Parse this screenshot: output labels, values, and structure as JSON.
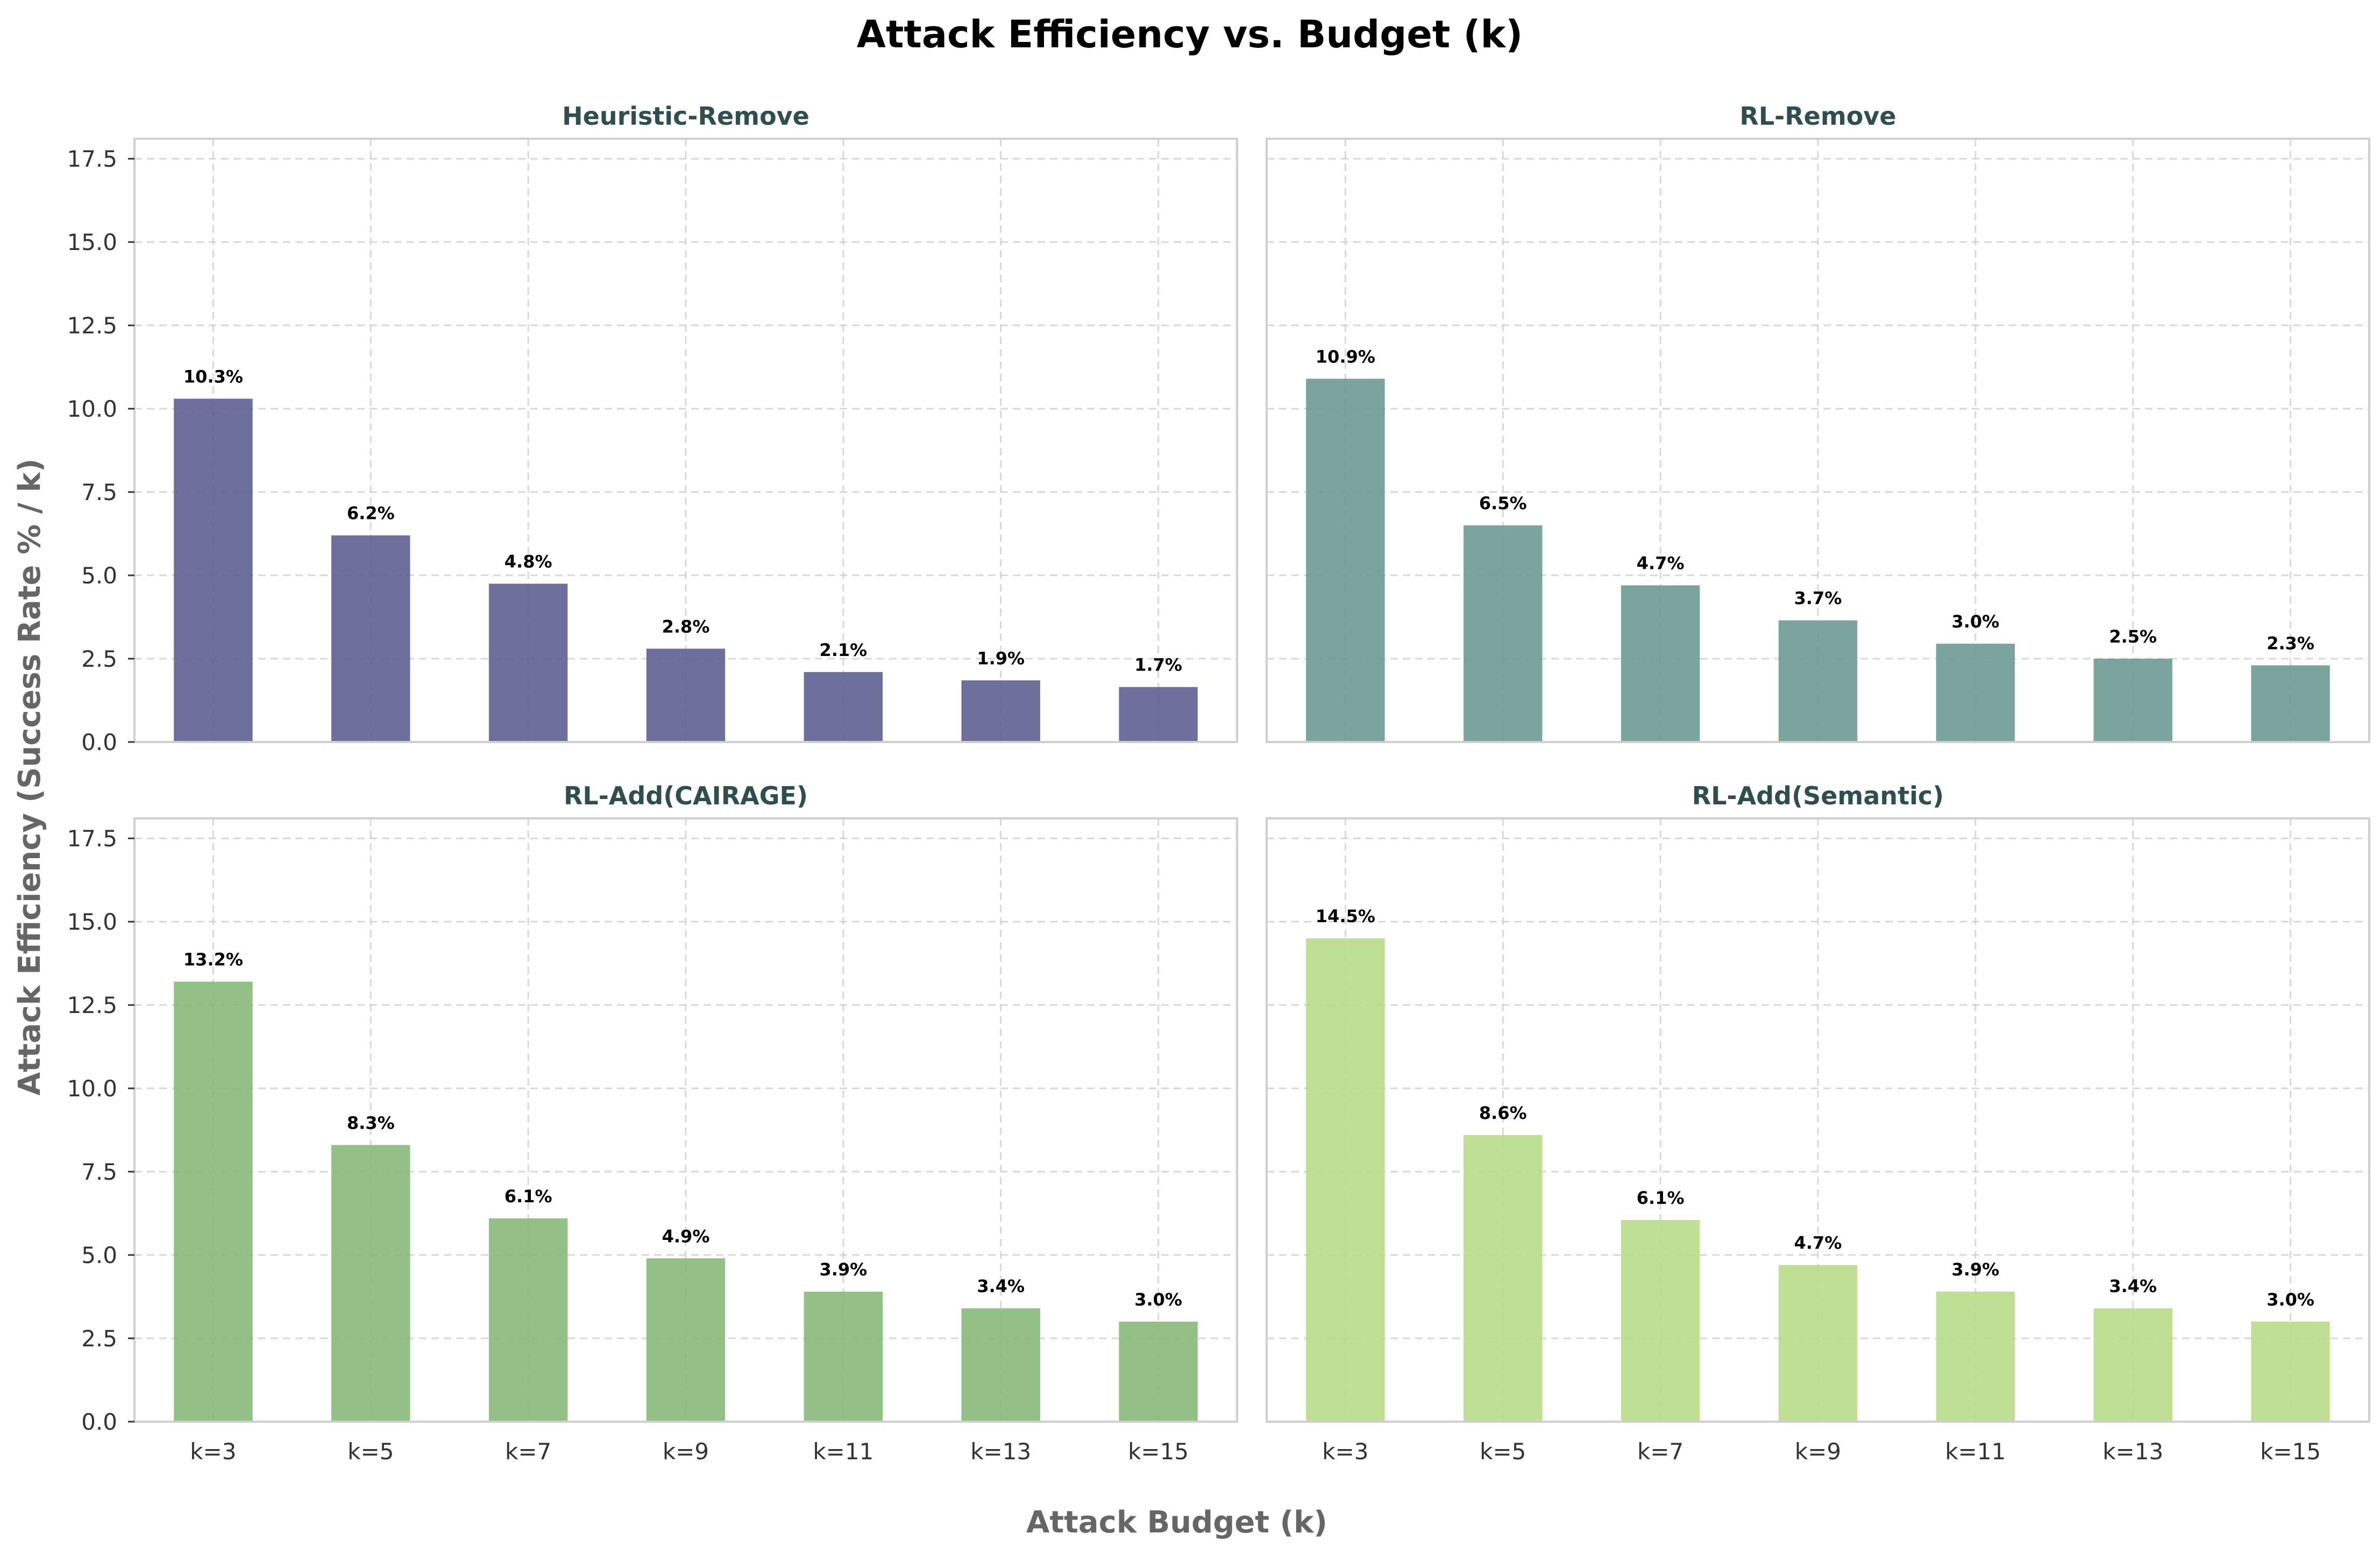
{
  "title": "Attack Efficiency vs. Budget (k)",
  "xlabel": "Attack Budget (k)",
  "ylabel": "Attack Efficiency (Success Rate % / k)",
  "colors": {
    "title_text": "#2f4f4f",
    "axis_label": "#666666"
  },
  "chart_data": [
    {
      "type": "bar",
      "title": "Heuristic-Remove",
      "categories": [
        "k=3",
        "k=5",
        "k=7",
        "k=9",
        "k=11",
        "k=13",
        "k=15"
      ],
      "values": [
        10.3,
        6.2,
        4.75,
        2.8,
        2.1,
        1.85,
        1.65
      ],
      "labels": [
        "10.3%",
        "6.2%",
        "4.8%",
        "2.8%",
        "2.1%",
        "1.9%",
        "1.7%"
      ],
      "color": "#5e6190",
      "ylim": [
        0,
        18.1
      ],
      "yticks": [
        "0.0",
        "2.5",
        "5.0",
        "7.5",
        "10.0",
        "12.5",
        "15.0",
        "17.5"
      ],
      "grid": true
    },
    {
      "type": "bar",
      "title": "RL-Remove",
      "categories": [
        "k=3",
        "k=5",
        "k=7",
        "k=9",
        "k=11",
        "k=13",
        "k=15"
      ],
      "values": [
        10.9,
        6.5,
        4.7,
        3.65,
        2.95,
        2.5,
        2.3
      ],
      "labels": [
        "10.9%",
        "6.5%",
        "4.7%",
        "3.7%",
        "3.0%",
        "2.5%",
        "2.3%"
      ],
      "color": "#6e9a93",
      "ylim": [
        0,
        18.1
      ],
      "yticks": [
        "0.0",
        "2.5",
        "5.0",
        "7.5",
        "10.0",
        "12.5",
        "15.0",
        "17.5"
      ],
      "grid": true
    },
    {
      "type": "bar",
      "title": "RL-Add(CAIRAGE)",
      "categories": [
        "k=3",
        "k=5",
        "k=7",
        "k=9",
        "k=11",
        "k=13",
        "k=15"
      ],
      "values": [
        13.2,
        8.3,
        6.1,
        4.9,
        3.9,
        3.4,
        3.0
      ],
      "labels": [
        "13.2%",
        "8.3%",
        "6.1%",
        "4.9%",
        "3.9%",
        "3.4%",
        "3.0%"
      ],
      "color": "#87b979",
      "ylim": [
        0,
        18.1
      ],
      "yticks": [
        "0.0",
        "2.5",
        "5.0",
        "7.5",
        "10.0",
        "12.5",
        "15.0",
        "17.5"
      ],
      "grid": true
    },
    {
      "type": "bar",
      "title": "RL-Add(Semantic)",
      "categories": [
        "k=3",
        "k=5",
        "k=7",
        "k=9",
        "k=11",
        "k=13",
        "k=15"
      ],
      "values": [
        14.5,
        8.6,
        6.05,
        4.7,
        3.9,
        3.4,
        3.0
      ],
      "labels": [
        "14.5%",
        "8.6%",
        "6.1%",
        "4.7%",
        "3.9%",
        "3.4%",
        "3.0%"
      ],
      "color": "#b8db87",
      "ylim": [
        0,
        18.1
      ],
      "yticks": [
        "0.0",
        "2.5",
        "5.0",
        "7.5",
        "10.0",
        "12.5",
        "15.0",
        "17.5"
      ],
      "grid": true
    }
  ]
}
